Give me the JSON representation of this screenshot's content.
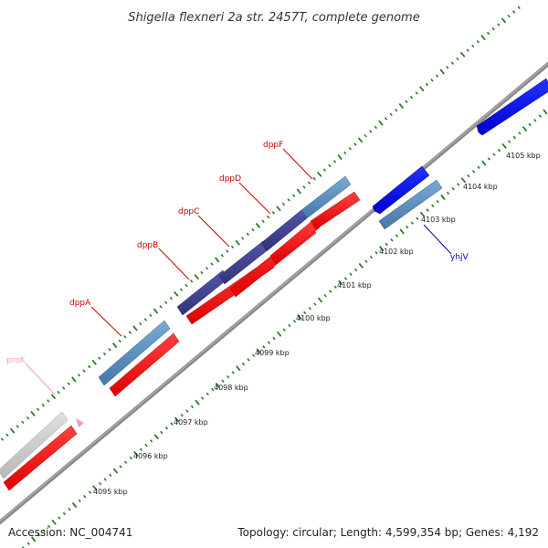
{
  "title": "Shigella flexneri 2a str. 2457T, complete genome",
  "footer": {
    "accession": "Accession: NC_004741",
    "summary": "Topology: circular; Length: 4,599,354 bp; Genes: 4,192"
  },
  "scale_ticks": [
    "4095 kbp",
    "4096 kbp",
    "4097 kbp",
    "4098 kbp",
    "4099 kbp",
    "4100 kbp",
    "4101 kbp",
    "4102 kbp",
    "4103 kbp",
    "4104 kbp",
    "4105 kbp"
  ],
  "genes": [
    {
      "name": "proK",
      "color": "#f29ad0"
    },
    {
      "name": "dppA",
      "color": "#cc0000"
    },
    {
      "name": "dppB",
      "color": "#cc0000"
    },
    {
      "name": "dppC",
      "color": "#cc0000"
    },
    {
      "name": "dppD",
      "color": "#cc0000"
    },
    {
      "name": "dppF",
      "color": "#cc0000"
    },
    {
      "name": "yhjV",
      "color": "#0000cc"
    }
  ],
  "colors": {
    "backbone": "#888888",
    "tick_dots": "#2a7a2a",
    "cds_red": "#ff0000",
    "cds_blue": "#0000ee",
    "gene_steelblue": "#4682b4",
    "gene_gray": "#c8c8c8",
    "dipeptide_purple": "#3c3c8c"
  }
}
